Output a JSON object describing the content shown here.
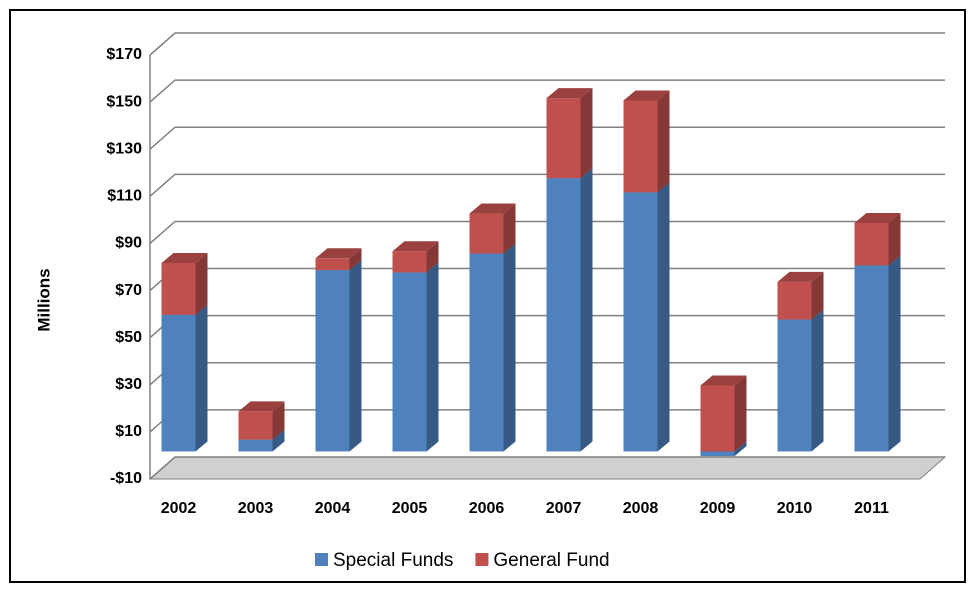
{
  "chart_data": {
    "type": "bar3d_stacked",
    "y_label": "Millions",
    "categories": [
      "2002",
      "2003",
      "2004",
      "2005",
      "2006",
      "2007",
      "2008",
      "2009",
      "2010",
      "2011"
    ],
    "series": [
      {
        "name": "Special Funds",
        "color": "#4f81bd",
        "values": [
          58,
          5,
          77,
          76,
          84,
          116,
          110,
          -2,
          56,
          79
        ]
      },
      {
        "name": "General Fund",
        "color": "#c0504d",
        "values": [
          22,
          12,
          5,
          9,
          17,
          34,
          39,
          28,
          16,
          18
        ]
      }
    ],
    "ylim": [
      -10,
      170
    ],
    "yticks": [
      {
        "value": -10,
        "label": "-$10"
      },
      {
        "value": 10,
        "label": "$10"
      },
      {
        "value": 30,
        "label": "$30"
      },
      {
        "value": 50,
        "label": "$50"
      },
      {
        "value": 70,
        "label": "$70"
      },
      {
        "value": 90,
        "label": "$90"
      },
      {
        "value": 110,
        "label": "$110"
      },
      {
        "value": 130,
        "label": "$130"
      },
      {
        "value": 150,
        "label": "$150"
      },
      {
        "value": 170,
        "label": "$170"
      }
    ],
    "grid": true
  }
}
